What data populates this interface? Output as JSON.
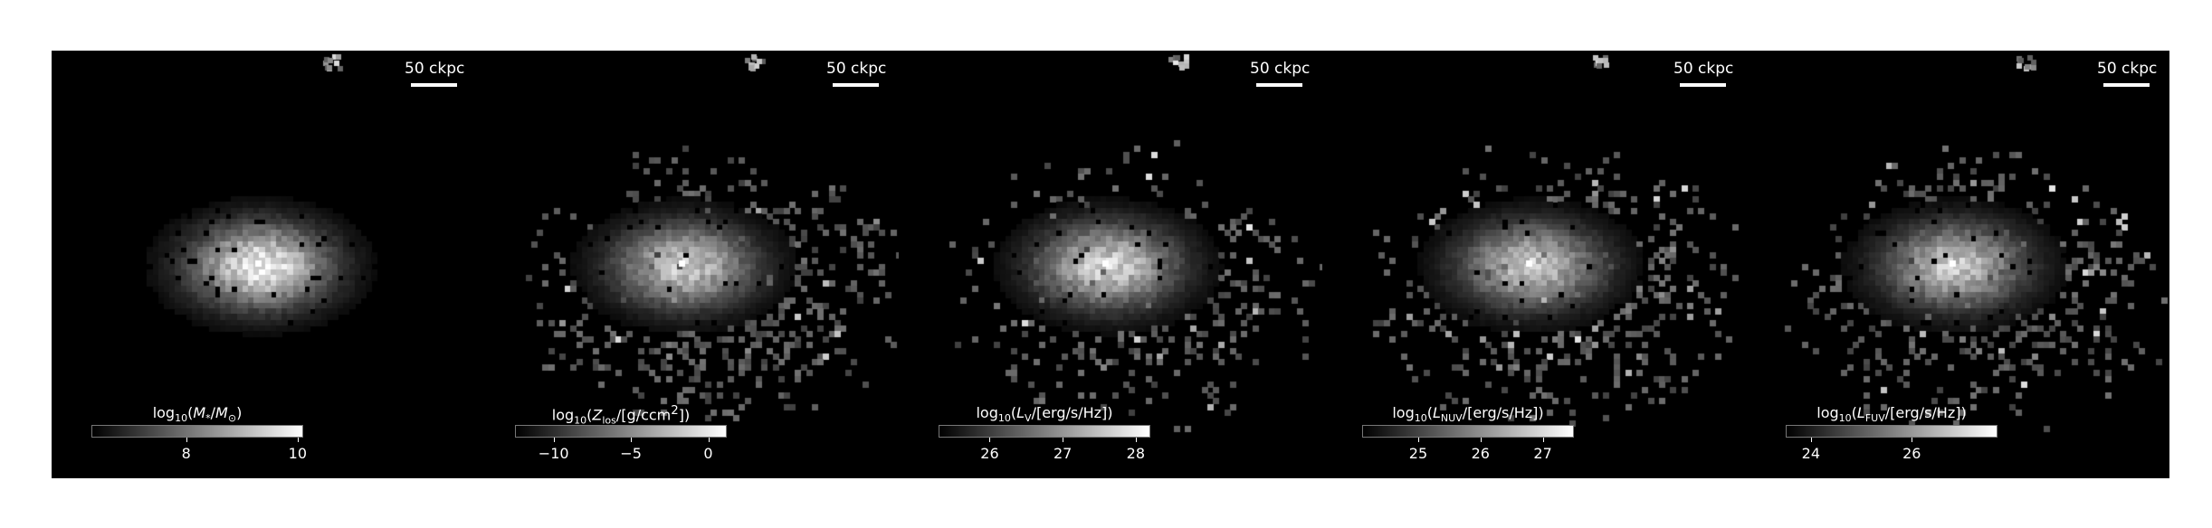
{
  "figure": {
    "scale_label": "50 ckpc",
    "panels": [
      {
        "id": "stellar-mass",
        "cbar_title_html": "log<sub>10</sub>(<i>M</i><sub>*</sub>/<i>M</i><sub>⊙</sub>)",
        "ticks": [
          {
            "value": 8,
            "label": "8"
          },
          {
            "value": 10,
            "label": "10"
          }
        ],
        "cbar_range": [
          6.3,
          10.1
        ],
        "map": {
          "core": 1.0,
          "halo": 0.0,
          "noise": 0.05,
          "seed": 3
        }
      },
      {
        "id": "metallicity",
        "cbar_title_html": "log<sub>10</sub>(<i>Z</i><sub>los</sub>/[g/ccm<sup>2</sup>])",
        "ticks": [
          {
            "value": -10,
            "label": "−10"
          },
          {
            "value": -5,
            "label": "−5"
          },
          {
            "value": 0,
            "label": "0"
          }
        ],
        "cbar_range": [
          -12.5,
          1.2
        ],
        "map": {
          "core": 0.85,
          "halo": 0.55,
          "noise": 0.15,
          "seed": 7
        }
      },
      {
        "id": "v-band",
        "cbar_title_html": "log<sub>10</sub>(<i>L</i><sub>V</sub>/[erg/s/Hz])",
        "ticks": [
          {
            "value": 26,
            "label": "26"
          },
          {
            "value": 27,
            "label": "27"
          },
          {
            "value": 28,
            "label": "28"
          }
        ],
        "cbar_range": [
          25.3,
          28.2
        ],
        "map": {
          "core": 0.9,
          "halo": 0.35,
          "noise": 0.35,
          "seed": 11
        }
      },
      {
        "id": "nuv",
        "cbar_title_html": "log<sub>10</sub>(<i>L</i><sub>NUV</sub>/[erg/s/Hz])",
        "ticks": [
          {
            "value": 25,
            "label": "25"
          },
          {
            "value": 26,
            "label": "26"
          },
          {
            "value": 27,
            "label": "27"
          }
        ],
        "cbar_range": [
          24.1,
          27.5
        ],
        "map": {
          "core": 0.85,
          "halo": 0.45,
          "noise": 0.5,
          "seed": 19
        }
      },
      {
        "id": "fuv",
        "cbar_title_html": "log<sub>10</sub>(<i>L</i><sub>FUV</sub>/[erg/s/Hz])",
        "ticks": [
          {
            "value": 24,
            "label": "24"
          },
          {
            "value": 26,
            "label": "26"
          }
        ],
        "cbar_range": [
          23.5,
          27.7
        ],
        "map": {
          "core": 0.85,
          "halo": 0.45,
          "noise": 0.5,
          "seed": 23
        }
      }
    ]
  }
}
